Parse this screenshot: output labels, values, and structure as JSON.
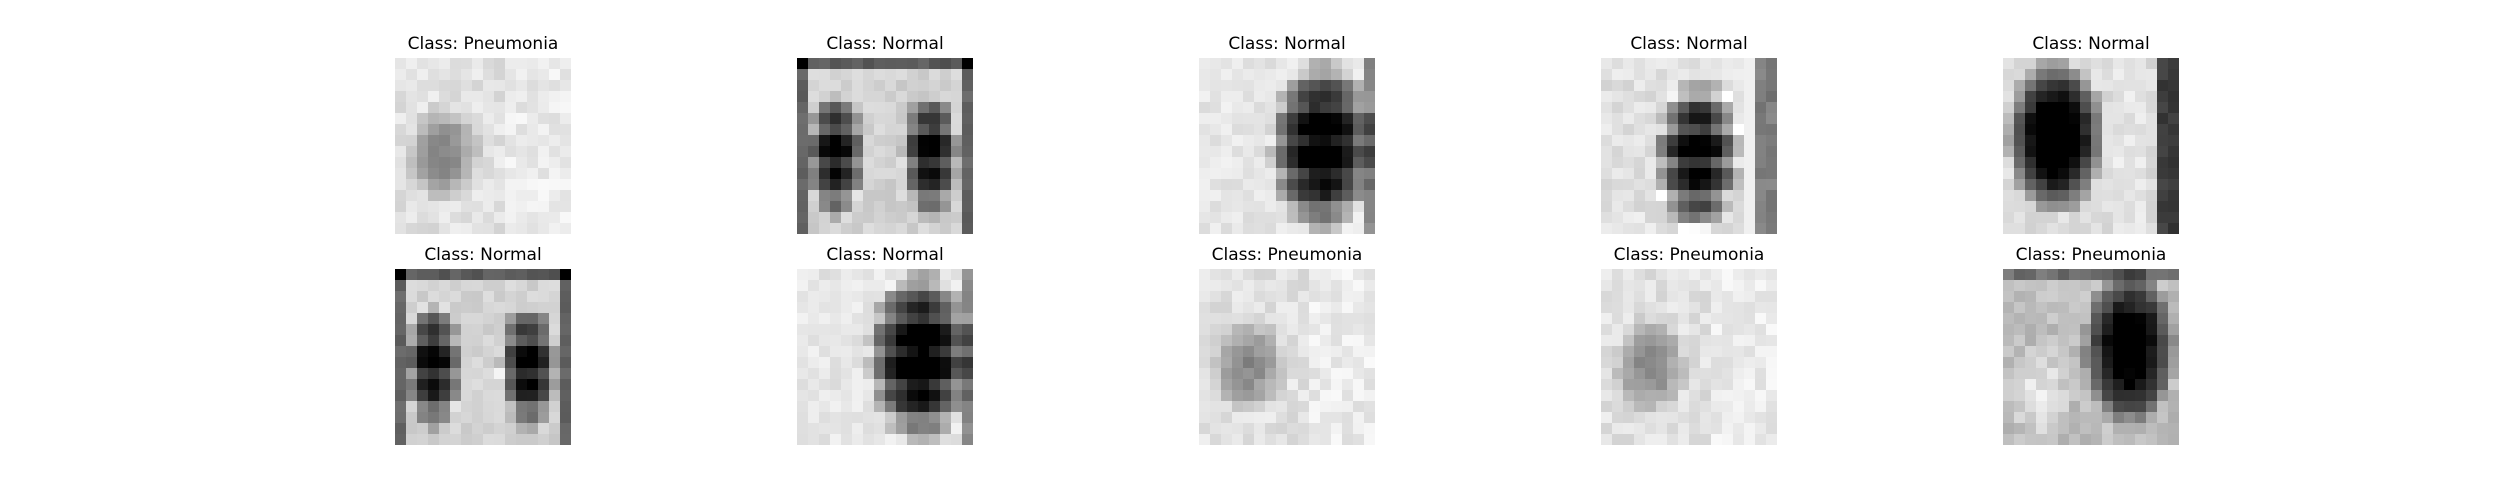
{
  "figure": {
    "panels": [
      {
        "title": "Class: Pneumonia",
        "image": "chest-xray-thumbnail",
        "tone": "light-hazy"
      },
      {
        "title": "Class: Normal",
        "image": "chest-xray-thumbnail",
        "tone": "dark-lungs-full-chest"
      },
      {
        "title": "Class: Normal",
        "image": "chest-xray-thumbnail",
        "tone": "dark-lung-right"
      },
      {
        "title": "Class: Normal",
        "image": "chest-xray-thumbnail",
        "tone": "dark-lung-ribs"
      },
      {
        "title": "Class: Normal",
        "image": "chest-xray-thumbnail",
        "tone": "dark-lung-left"
      },
      {
        "title": "Class: Normal",
        "image": "chest-xray-thumbnail",
        "tone": "dark-lungs-full-chest"
      },
      {
        "title": "Class: Normal",
        "image": "chest-xray-thumbnail",
        "tone": "dark-lung-right"
      },
      {
        "title": "Class: Pneumonia",
        "image": "chest-xray-thumbnail",
        "tone": "light-hazy"
      },
      {
        "title": "Class: Pneumonia",
        "image": "chest-xray-thumbnail",
        "tone": "light-hazy"
      },
      {
        "title": "Class: Pneumonia",
        "image": "chest-xray-thumbnail",
        "tone": "mid-dark-lung-right"
      }
    ]
  }
}
